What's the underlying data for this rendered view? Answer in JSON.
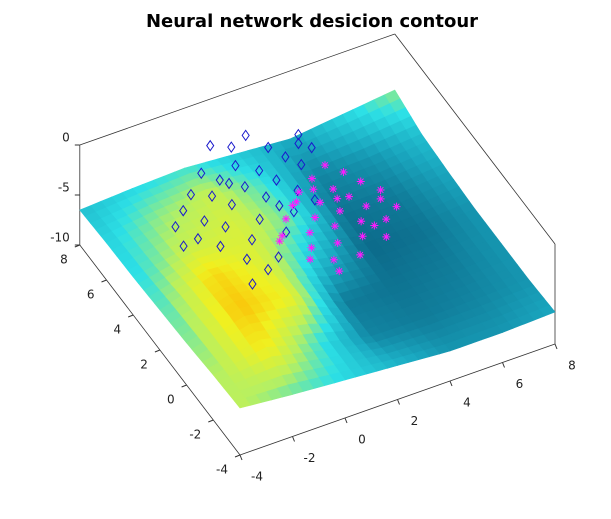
{
  "chart_data": {
    "type": "surface3d",
    "title": "Neural network desicion contour",
    "x": [
      -4,
      -2,
      0,
      2,
      4,
      6,
      8
    ],
    "y": [
      -4,
      -2,
      0,
      2,
      4,
      6,
      8
    ],
    "z": [
      [
        -5.3,
        -5.8,
        -6.2,
        -6.6,
        -7.0,
        -7.0,
        -6.8
      ],
      [
        -5.5,
        -4.6,
        -6.0,
        -7.2,
        -7.3,
        -7.2,
        -7.0
      ],
      [
        -5.8,
        -4.2,
        -4.8,
        -7.3,
        -7.4,
        -7.3,
        -7.0
      ],
      [
        -6.0,
        -4.4,
        -5.0,
        -6.5,
        -7.5,
        -7.4,
        -7.0
      ],
      [
        -6.2,
        -5.2,
        -5.0,
        -5.8,
        -7.4,
        -7.3,
        -6.8
      ],
      [
        -6.3,
        -5.6,
        -5.2,
        -6.0,
        -7.2,
        -7.0,
        -6.5
      ],
      [
        -6.5,
        -6.2,
        -6.0,
        -6.4,
        -6.8,
        -6.2,
        -5.6
      ]
    ],
    "xlim": [
      -4,
      8
    ],
    "ylim": [
      -4,
      8
    ],
    "zlim": [
      -10,
      0
    ],
    "xticks": [
      -4,
      -2,
      0,
      2,
      4,
      6,
      8
    ],
    "yticks": [
      -4,
      -2,
      0,
      2,
      4,
      6,
      8
    ],
    "zticks": [
      -10,
      -5,
      0
    ],
    "colormap": [
      "#0c6a8a",
      "#1aa8c0",
      "#2de0e6",
      "#b8f060",
      "#f0f020",
      "#ffb000"
    ],
    "clim": [
      -7.5,
      -4
    ],
    "series": [
      {
        "type": "scatter3d",
        "marker": "diamond",
        "color": "#1a1acc",
        "x": [
          -0.1,
          0.5,
          1.2,
          2.8,
          2.6,
          -1.0,
          0.2,
          1.6,
          -1.8,
          -0.6,
          0.8,
          1.9,
          -2.4,
          -1.2,
          0.0,
          1.1,
          2.2,
          -3.0,
          -2.0,
          -0.8,
          0.4,
          1.5,
          -2.6,
          -1.5,
          -0.3,
          0.9,
          -3.2,
          -2.1,
          -1.0,
          0.2,
          -1.6,
          -0.6,
          -2.0,
          -1.2,
          0.6,
          1.8,
          -0.4,
          2.9
        ],
        "y": [
          5.9,
          5.5,
          5.8,
          5.0,
          4.6,
          4.8,
          4.6,
          4.9,
          4.0,
          4.2,
          4.0,
          4.2,
          3.4,
          3.6,
          3.5,
          3.3,
          3.6,
          2.8,
          2.6,
          2.9,
          2.7,
          2.5,
          1.9,
          2.0,
          1.8,
          1.6,
          1.8,
          1.2,
          1.0,
          0.8,
          0.2,
          -0.2,
          -1.0,
          -0.6,
          2.1,
          1.8,
          3.9,
          4.2
        ],
        "z": [
          0,
          0,
          0,
          0,
          0,
          0,
          0,
          0,
          0,
          0,
          0,
          0,
          0,
          0,
          0,
          0,
          0,
          0,
          0,
          0,
          0,
          0,
          0,
          0,
          0,
          0,
          0,
          0,
          0,
          0,
          0,
          0,
          0,
          0,
          0,
          0,
          0,
          0
        ]
      },
      {
        "type": "scatter3d",
        "marker": "asterisk",
        "color": "#ff1aff",
        "x": [
          2.9,
          3.3,
          2.2,
          1.5,
          2.6,
          3.6,
          1.0,
          1.9,
          2.9,
          4.0,
          0.5,
          1.4,
          2.3,
          3.2,
          4.1,
          0.0,
          0.9,
          1.8,
          2.7,
          3.5,
          -0.2,
          0.6,
          1.5,
          2.4,
          3.1,
          1.0,
          1.9,
          0.9,
          2.5,
          1.2,
          3.8,
          0.3,
          2.0,
          3.0
        ],
        "y": [
          3.2,
          2.6,
          2.8,
          2.4,
          2.0,
          1.9,
          1.9,
          1.6,
          1.4,
          1.2,
          1.4,
          1.0,
          0.9,
          0.7,
          0.2,
          0.7,
          0.4,
          0.3,
          0.1,
          -0.2,
          0.5,
          -0.3,
          -0.5,
          -0.6,
          -1.0,
          -1.2,
          -1.4,
          -1.8,
          1.5,
          2.0,
          0.8,
          -0.8,
          2.3,
          -0.3
        ],
        "z": [
          0,
          0,
          0,
          0,
          0,
          0,
          0,
          0,
          0,
          0,
          0,
          0,
          0,
          0,
          0,
          0,
          0,
          0,
          0,
          0,
          0,
          0,
          0,
          0,
          0,
          0,
          0,
          0,
          0,
          0,
          0,
          0,
          0,
          0
        ]
      }
    ]
  }
}
